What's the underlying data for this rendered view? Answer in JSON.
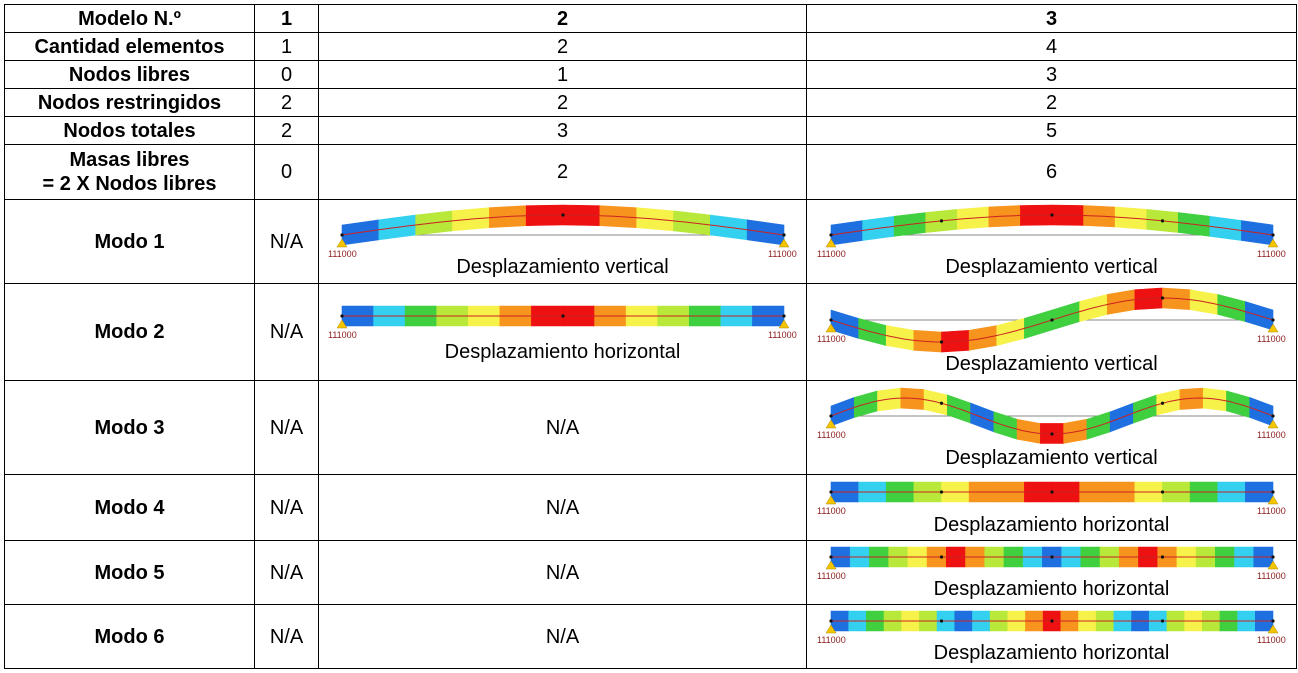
{
  "table": {
    "header": {
      "label": "Modelo N.º",
      "cols": [
        "1",
        "2",
        "3"
      ]
    },
    "rows": [
      {
        "label": "Cantidad elementos",
        "values": [
          "1",
          "2",
          "4"
        ]
      },
      {
        "label": "Nodos libres",
        "values": [
          "0",
          "1",
          "3"
        ]
      },
      {
        "label": "Nodos restringidos",
        "values": [
          "2",
          "2",
          "2"
        ]
      },
      {
        "label": "Nodos totales",
        "values": [
          "2",
          "3",
          "5"
        ]
      },
      {
        "label_line1": "Masas libres",
        "label_line2": "= 2 X Nodos libres",
        "values": [
          "0",
          "2",
          "6"
        ]
      }
    ],
    "modes": [
      {
        "label": "Modo 1",
        "m1": "N/A",
        "m2": {
          "caption": "Desplazamiento vertical",
          "support_left": "111000",
          "support_right": "111000"
        },
        "m3": {
          "caption": "Desplazamiento vertical",
          "support_left": "111000",
          "support_right": "111000"
        }
      },
      {
        "label": "Modo 2",
        "m1": "N/A",
        "m2": {
          "caption": "Desplazamiento horizontal",
          "support_left": "111000",
          "support_right": "111000"
        },
        "m3": {
          "caption": "Desplazamiento vertical",
          "support_left": "111000",
          "support_right": "111000"
        }
      },
      {
        "label": "Modo 3",
        "m1": "N/A",
        "m2": "N/A",
        "m3": {
          "caption": "Desplazamiento vertical",
          "support_left": "111000",
          "support_right": "111000"
        }
      },
      {
        "label": "Modo 4",
        "m1": "N/A",
        "m2": "N/A",
        "m3": {
          "caption": "Desplazamiento horizontal",
          "support_left": "111000",
          "support_right": "111000"
        }
      },
      {
        "label": "Modo 5",
        "m1": "N/A",
        "m2": "N/A",
        "m3": {
          "caption": "Desplazamiento horizontal",
          "support_left": "111000",
          "support_right": "111000"
        }
      },
      {
        "label": "Modo 6",
        "m1": "N/A",
        "m2": "N/A",
        "m3": {
          "caption": "Desplazamiento horizontal",
          "support_left": "111000",
          "support_right": "111000"
        }
      }
    ]
  },
  "colors": {
    "blue": "#1e6fe0",
    "cyan": "#33d0f0",
    "green": "#3fcf3f",
    "lime": "#b8e83a",
    "yellow": "#f7f24a",
    "orange": "#f7941d",
    "red": "#ee1111",
    "axis": "#cc2222",
    "support": "#f5c400",
    "baseline": "#888888"
  }
}
